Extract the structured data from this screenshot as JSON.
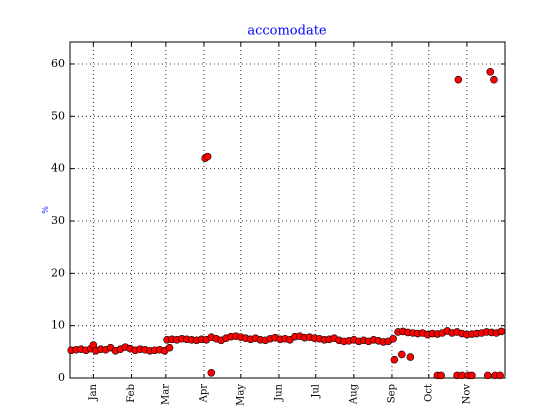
{
  "chart_data": {
    "type": "scatter",
    "title": "accomodate",
    "y_label": "%",
    "color": "#ff0000",
    "edge_color": "#000000",
    "grid": true,
    "xlim": [
      -19,
      335
    ],
    "ylim": [
      0,
      64.2
    ],
    "xticks": [
      {
        "value": 0,
        "label": "Jan"
      },
      {
        "value": 31,
        "label": "Feb"
      },
      {
        "value": 59,
        "label": "Mar"
      },
      {
        "value": 90,
        "label": "Apr"
      },
      {
        "value": 120,
        "label": "May"
      },
      {
        "value": 151,
        "label": "Jun"
      },
      {
        "value": 181,
        "label": "Jul"
      },
      {
        "value": 212,
        "label": "Aug"
      },
      {
        "value": 243,
        "label": "Sep"
      },
      {
        "value": 273,
        "label": "Oct"
      },
      {
        "value": 304,
        "label": "Nov"
      }
    ],
    "yticks": [
      0,
      10,
      20,
      30,
      40,
      50,
      60
    ],
    "x": [
      -18,
      -14,
      -10,
      -6,
      -2,
      0,
      2,
      6,
      10,
      14,
      18,
      22,
      26,
      30,
      34,
      38,
      42,
      46,
      50,
      54,
      58,
      60,
      62,
      64,
      68,
      72,
      76,
      80,
      84,
      88,
      92,
      96,
      100,
      104,
      108,
      112,
      116,
      120,
      124,
      128,
      132,
      136,
      140,
      144,
      148,
      152,
      156,
      160,
      164,
      168,
      172,
      176,
      180,
      184,
      188,
      192,
      196,
      200,
      204,
      208,
      212,
      216,
      220,
      224,
      228,
      232,
      236,
      240,
      244,
      248,
      252,
      256,
      260,
      264,
      268,
      272,
      276,
      280,
      284,
      288,
      292,
      296,
      300,
      304,
      308,
      312,
      316,
      320,
      324,
      328,
      332,
      91,
      93,
      96,
      245,
      251,
      258,
      280,
      283,
      297,
      296,
      300,
      305,
      308,
      323,
      326,
      321,
      327,
      331
    ],
    "values": [
      5.3,
      5.4,
      5.5,
      5.3,
      5.6,
      6.3,
      5.2,
      5.5,
      5.4,
      5.8,
      5.2,
      5.5,
      5.9,
      5.6,
      5.3,
      5.5,
      5.4,
      5.2,
      5.3,
      5.4,
      5.2,
      7.3,
      5.8,
      7.4,
      7.3,
      7.5,
      7.4,
      7.3,
      7.2,
      7.4,
      7.3,
      7.8,
      7.5,
      7.2,
      7.6,
      7.9,
      8.0,
      7.8,
      7.6,
      7.4,
      7.6,
      7.3,
      7.2,
      7.5,
      7.7,
      7.4,
      7.5,
      7.3,
      7.9,
      8.0,
      7.7,
      7.8,
      7.6,
      7.5,
      7.3,
      7.4,
      7.6,
      7.2,
      7.0,
      7.1,
      7.3,
      7.0,
      7.2,
      7.0,
      7.3,
      7.1,
      6.9,
      7.0,
      7.5,
      8.8,
      8.9,
      8.7,
      8.6,
      8.5,
      8.6,
      8.3,
      8.5,
      8.4,
      8.6,
      9.0,
      8.6,
      8.8,
      8.5,
      8.3,
      8.4,
      8.5,
      8.6,
      8.8,
      8.7,
      8.6,
      8.9,
      42,
      42.3,
      1,
      3.5,
      4.5,
      4,
      0.5,
      0.5,
      57,
      0.5,
      0.5,
      0.5,
      0.5,
      58.5,
      57,
      0.5,
      0.5,
      0.5
    ]
  }
}
